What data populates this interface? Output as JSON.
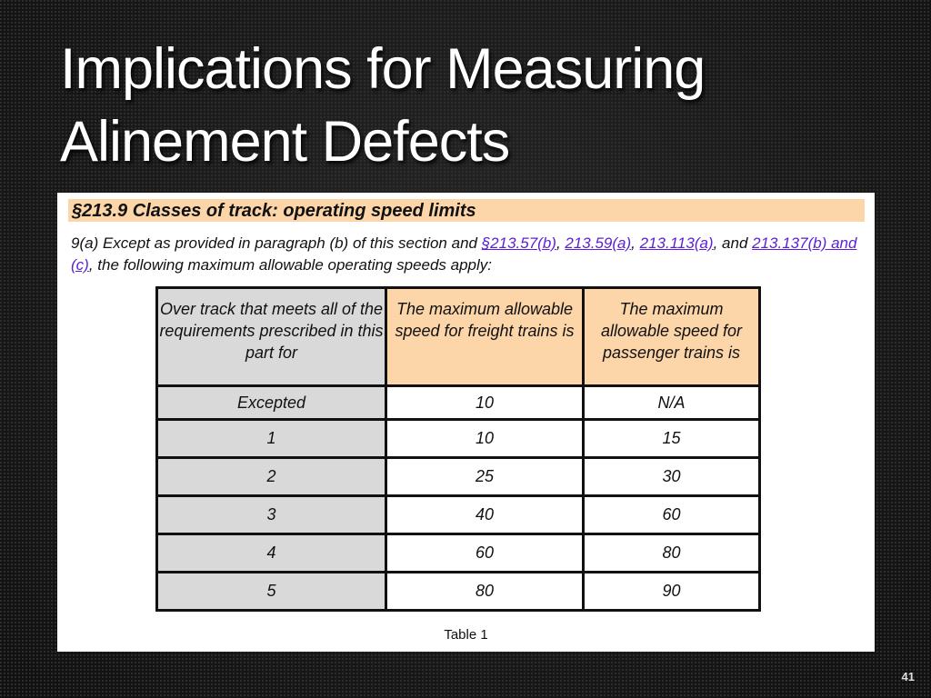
{
  "slide": {
    "title_line1": "Implications for Measuring",
    "title_line2": "Alinement Defects",
    "page_number": "41"
  },
  "document": {
    "heading": "§213.9 Classes of track: operating speed limits",
    "intro": {
      "text1": "9(a) Except as provided in paragraph (b) of this section and ",
      "link1": "§213.57(b)",
      "sep1": ", ",
      "link2": "213.59(a)",
      "sep2": ", ",
      "link3": "213.113(a)",
      "sep3": ", and ",
      "link4": "213.137(b) and (c)",
      "text2": ", the following maximum allowable operating speeds apply:"
    },
    "table": {
      "headers": [
        "Over track that meets all of the requirements prescribed in this part for",
        "The maximum allowable speed for freight trains is",
        "The maximum allowable speed for passenger trains is"
      ],
      "rows": [
        [
          "Excepted",
          "10",
          "N/A"
        ],
        [
          "1",
          "10",
          "15"
        ],
        [
          "2",
          "25",
          "30"
        ],
        [
          "3",
          "40",
          "60"
        ],
        [
          "4",
          "60",
          "80"
        ],
        [
          "5",
          "80",
          "90"
        ]
      ]
    },
    "caption": "Table 1"
  },
  "colors": {
    "heading_highlight": "#fcd5a8",
    "class_column": "#d9d9d9",
    "link": "#5a1fd6"
  }
}
